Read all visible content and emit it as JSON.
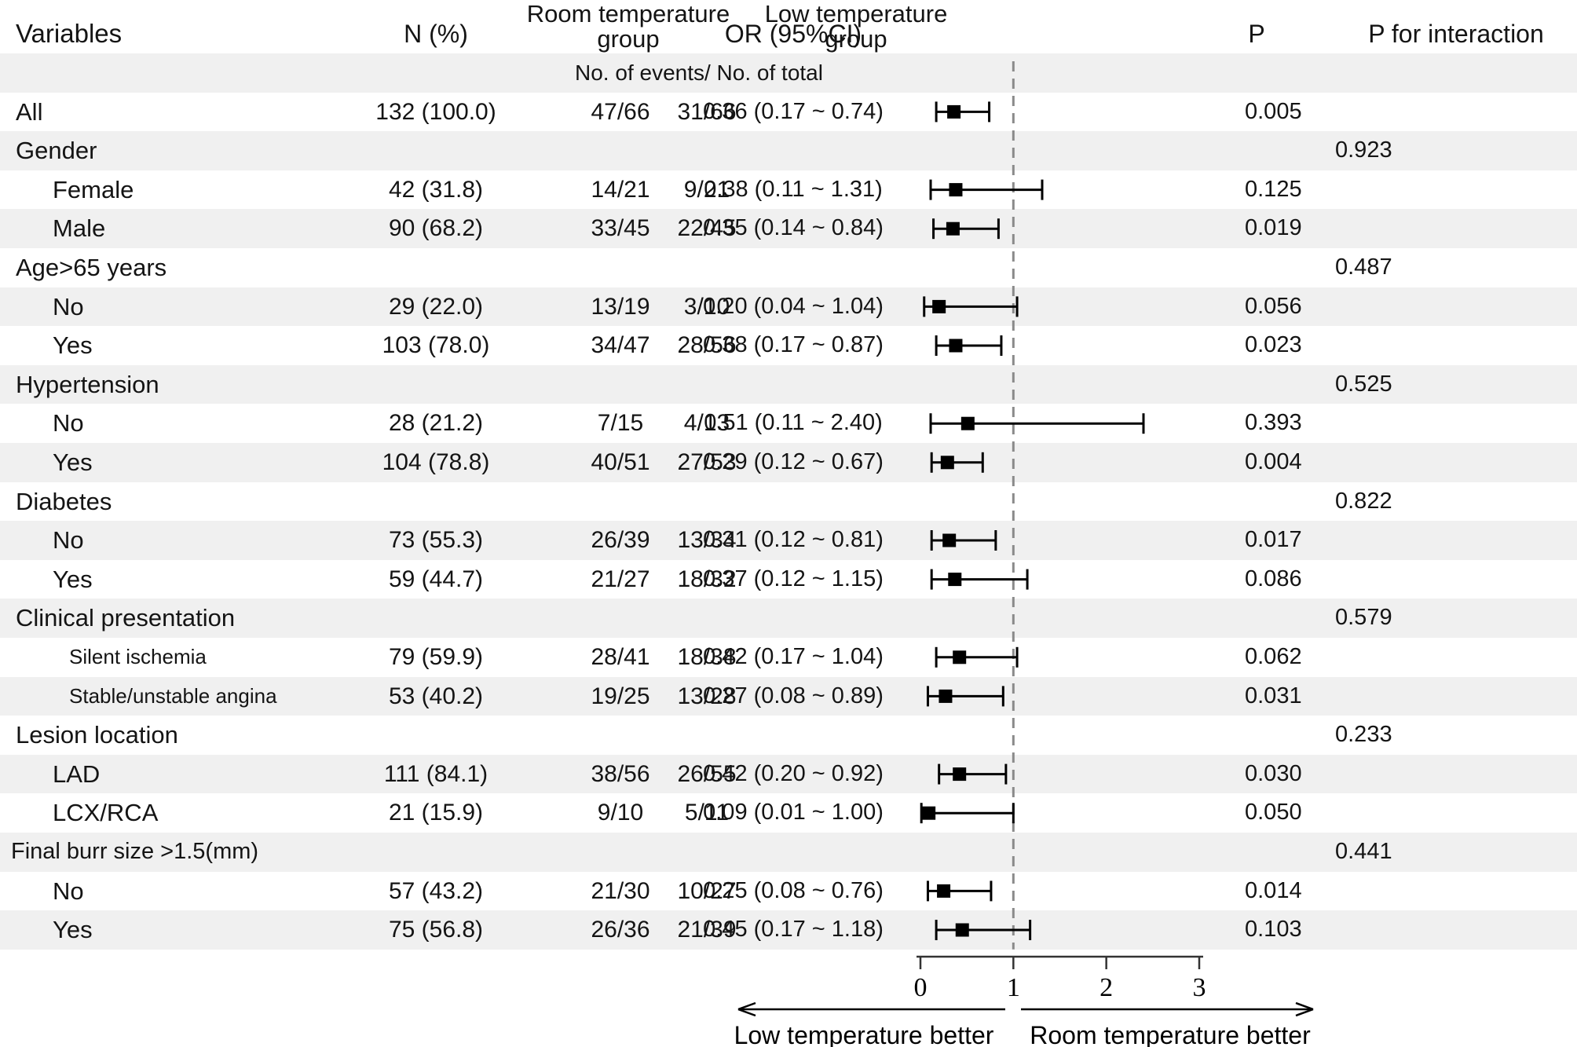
{
  "figure": {
    "columns": {
      "variables": "Variables",
      "n": "N (%)",
      "room_group": "Room temperature group",
      "low_group": "Low temperature group",
      "or_ci": "OR (95%CI)",
      "p": "P",
      "p_interaction": "P for interaction"
    },
    "subheader": "No. of events/ No. of total",
    "colors": {
      "stripe": "#f0f0f0",
      "text": "#141414",
      "marker": "#000000",
      "dashed_line": "#8a8a8a"
    }
  },
  "chart_data": {
    "type": "forest",
    "or_axis": {
      "ticks": [
        0,
        1,
        2,
        3
      ],
      "range": [
        0,
        3
      ],
      "null_line": 1,
      "left_label": "Low temperature better",
      "right_label": "Room temperature better"
    },
    "rows": [
      {
        "label": "All",
        "level": "group",
        "n": "132 (100.0)",
        "room": "47/66",
        "low": "31/66",
        "or_text": "0.36 (0.17 ~ 0.74)",
        "or": 0.36,
        "ci_low": 0.17,
        "ci_high": 0.74,
        "p": "0.005",
        "p_interaction": null,
        "shaded": false
      },
      {
        "label": "Gender",
        "level": "group",
        "n": null,
        "room": null,
        "low": null,
        "or_text": null,
        "or": null,
        "ci_low": null,
        "ci_high": null,
        "p": null,
        "p_interaction": "0.923",
        "shaded": true
      },
      {
        "label": "Female",
        "level": "item",
        "n": "42 (31.8)",
        "room": "14/21",
        "low": "9/21",
        "or_text": "0.38 (0.11 ~ 1.31)",
        "or": 0.38,
        "ci_low": 0.11,
        "ci_high": 1.31,
        "p": "0.125",
        "p_interaction": null,
        "shaded": false
      },
      {
        "label": "Male",
        "level": "item",
        "n": "90 (68.2)",
        "room": "33/45",
        "low": "22/45",
        "or_text": "0.35 (0.14 ~ 0.84)",
        "or": 0.35,
        "ci_low": 0.14,
        "ci_high": 0.84,
        "p": "0.019",
        "p_interaction": null,
        "shaded": true
      },
      {
        "label": "Age>65 years",
        "level": "group",
        "n": null,
        "room": null,
        "low": null,
        "or_text": null,
        "or": null,
        "ci_low": null,
        "ci_high": null,
        "p": null,
        "p_interaction": "0.487",
        "shaded": false
      },
      {
        "label": "No",
        "level": "item",
        "n": "29 (22.0)",
        "room": "13/19",
        "low": "3/10",
        "or_text": "0.20 (0.04 ~ 1.04)",
        "or": 0.2,
        "ci_low": 0.04,
        "ci_high": 1.04,
        "p": "0.056",
        "p_interaction": null,
        "shaded": true
      },
      {
        "label": "Yes",
        "level": "item",
        "n": "103 (78.0)",
        "room": "34/47",
        "low": "28/56",
        "or_text": "0.38 (0.17 ~ 0.87)",
        "or": 0.38,
        "ci_low": 0.17,
        "ci_high": 0.87,
        "p": "0.023",
        "p_interaction": null,
        "shaded": false
      },
      {
        "label": "Hypertension",
        "level": "group",
        "n": null,
        "room": null,
        "low": null,
        "or_text": null,
        "or": null,
        "ci_low": null,
        "ci_high": null,
        "p": null,
        "p_interaction": "0.525",
        "shaded": true
      },
      {
        "label": "No",
        "level": "item",
        "n": "28 (21.2)",
        "room": "7/15",
        "low": "4/13",
        "or_text": "0.51 (0.11 ~ 2.40)",
        "or": 0.51,
        "ci_low": 0.11,
        "ci_high": 2.4,
        "p": "0.393",
        "p_interaction": null,
        "shaded": false
      },
      {
        "label": "Yes",
        "level": "item",
        "n": "104 (78.8)",
        "room": "40/51",
        "low": "27/53",
        "or_text": "0.29 (0.12 ~ 0.67)",
        "or": 0.29,
        "ci_low": 0.12,
        "ci_high": 0.67,
        "p": "0.004",
        "p_interaction": null,
        "shaded": true
      },
      {
        "label": "Diabetes",
        "level": "group",
        "n": null,
        "room": null,
        "low": null,
        "or_text": null,
        "or": null,
        "ci_low": null,
        "ci_high": null,
        "p": null,
        "p_interaction": "0.822",
        "shaded": false
      },
      {
        "label": "No",
        "level": "item",
        "n": "73 (55.3)",
        "room": "26/39",
        "low": "13/34",
        "or_text": "0.31 (0.12 ~ 0.81)",
        "or": 0.31,
        "ci_low": 0.12,
        "ci_high": 0.81,
        "p": "0.017",
        "p_interaction": null,
        "shaded": true
      },
      {
        "label": "Yes",
        "level": "item",
        "n": "59 (44.7)",
        "room": "21/27",
        "low": "18/32",
        "or_text": "0.37 (0.12 ~ 1.15)",
        "or": 0.37,
        "ci_low": 0.12,
        "ci_high": 1.15,
        "p": "0.086",
        "p_interaction": null,
        "shaded": false
      },
      {
        "label": "Clinical presentation",
        "level": "group",
        "n": null,
        "room": null,
        "low": null,
        "or_text": null,
        "or": null,
        "ci_low": null,
        "ci_high": null,
        "p": null,
        "p_interaction": "0.579",
        "shaded": true
      },
      {
        "label": "Silent ischemia",
        "level": "small",
        "n": "79 (59.9)",
        "room": "28/41",
        "low": "18/38",
        "or_text": "0.42 (0.17 ~ 1.04)",
        "or": 0.42,
        "ci_low": 0.17,
        "ci_high": 1.04,
        "p": "0.062",
        "p_interaction": null,
        "shaded": false
      },
      {
        "label": "Stable/unstable angina",
        "level": "small",
        "n": "53 (40.2)",
        "room": "19/25",
        "low": "13/28",
        "or_text": "0.27 (0.08 ~ 0.89)",
        "or": 0.27,
        "ci_low": 0.08,
        "ci_high": 0.89,
        "p": "0.031",
        "p_interaction": null,
        "shaded": true
      },
      {
        "label": "Lesion location",
        "level": "group",
        "n": null,
        "room": null,
        "low": null,
        "or_text": null,
        "or": null,
        "ci_low": null,
        "ci_high": null,
        "p": null,
        "p_interaction": "0.233",
        "shaded": false
      },
      {
        "label": "LAD",
        "level": "item",
        "n": "111 (84.1)",
        "room": "38/56",
        "low": "26/55",
        "or_text": "0.42 (0.20 ~ 0.92)",
        "or": 0.42,
        "ci_low": 0.2,
        "ci_high": 0.92,
        "p": "0.030",
        "p_interaction": null,
        "shaded": true
      },
      {
        "label": "LCX/RCA",
        "level": "item",
        "n": "21 (15.9)",
        "room": "9/10",
        "low": "5/11",
        "or_text": "0.09 (0.01 ~ 1.00)",
        "or": 0.09,
        "ci_low": 0.01,
        "ci_high": 1.0,
        "p": "0.050",
        "p_interaction": null,
        "shaded": false
      },
      {
        "label": "Final burr size >1.5(mm)",
        "level": "group-sm",
        "n": null,
        "room": null,
        "low": null,
        "or_text": null,
        "or": null,
        "ci_low": null,
        "ci_high": null,
        "p": null,
        "p_interaction": "0.441",
        "shaded": true
      },
      {
        "label": "No",
        "level": "item",
        "n": "57 (43.2)",
        "room": "21/30",
        "low": "10/27",
        "or_text": "0.25 (0.08 ~ 0.76)",
        "or": 0.25,
        "ci_low": 0.08,
        "ci_high": 0.76,
        "p": "0.014",
        "p_interaction": null,
        "shaded": false
      },
      {
        "label": "Yes",
        "level": "item",
        "n": "75 (56.8)",
        "room": "26/36",
        "low": "21/39",
        "or_text": "0.45 (0.17 ~ 1.18)",
        "or": 0.45,
        "ci_low": 0.17,
        "ci_high": 1.18,
        "p": "0.103",
        "p_interaction": null,
        "shaded": true
      }
    ]
  }
}
